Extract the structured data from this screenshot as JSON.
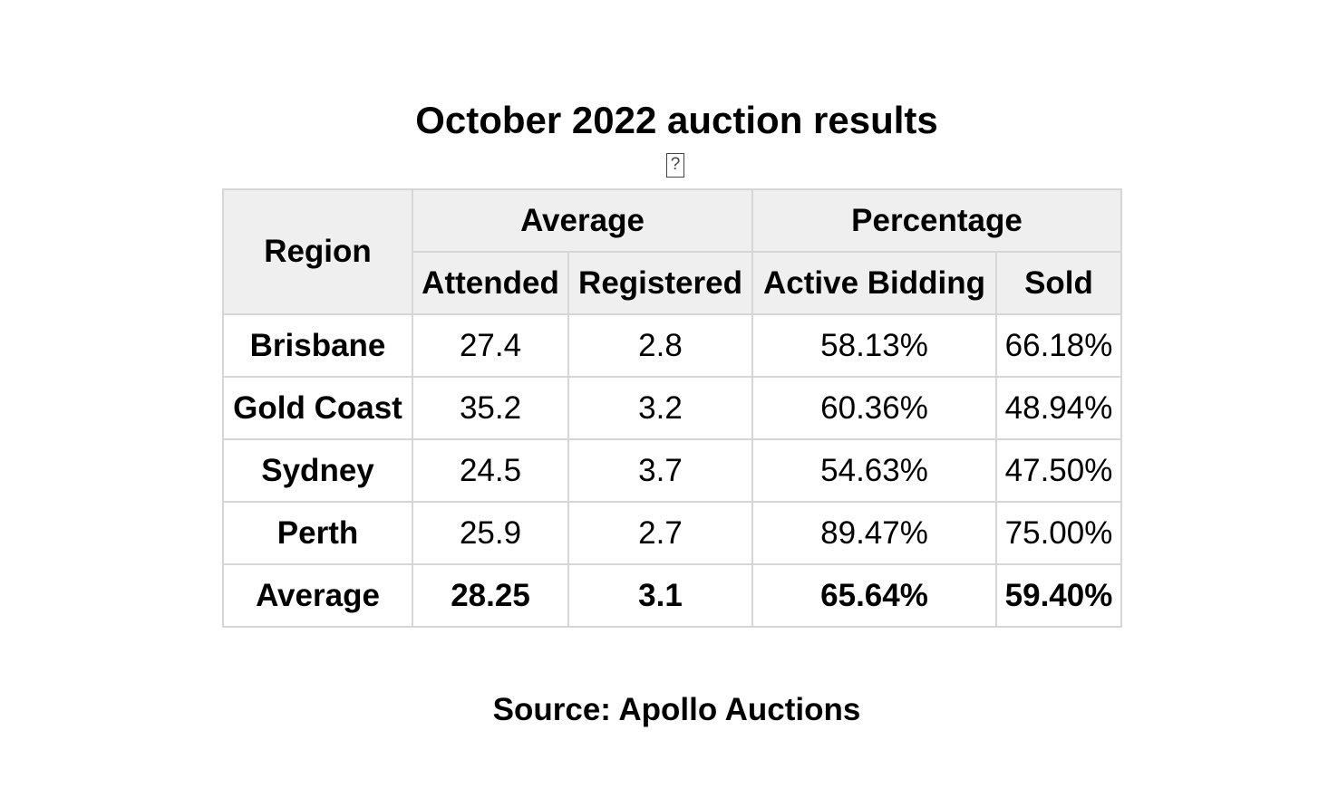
{
  "title": "October 2022 auction results",
  "image_placeholder_glyph": "?",
  "table": {
    "header": {
      "region": "Region",
      "group_average": "Average",
      "group_percentage": "Percentage",
      "attended": "Attended",
      "registered": "Registered",
      "active_bidding": "Active Bidding",
      "sold": "Sold"
    },
    "rows": [
      {
        "region": "Brisbane",
        "attended": "27.4",
        "registered": "2.8",
        "active_bidding": "58.13%",
        "sold": "66.18%"
      },
      {
        "region": "Gold Coast",
        "attended": "35.2",
        "registered": "3.2",
        "active_bidding": "60.36%",
        "sold": "48.94%"
      },
      {
        "region": "Sydney",
        "attended": "24.5",
        "registered": "3.7",
        "active_bidding": "54.63%",
        "sold": "47.50%"
      },
      {
        "region": "Perth",
        "attended": "25.9",
        "registered": "2.7",
        "active_bidding": "89.47%",
        "sold": "75.00%"
      }
    ],
    "average_row": {
      "region": "Average",
      "attended": "28.25",
      "registered": "3.1",
      "active_bidding": "65.64%",
      "sold": "59.40%"
    }
  },
  "source": "Source: Apollo Auctions",
  "colors": {
    "header_background": "#efefef",
    "border": "#d6d6d6",
    "text": "#000000"
  }
}
